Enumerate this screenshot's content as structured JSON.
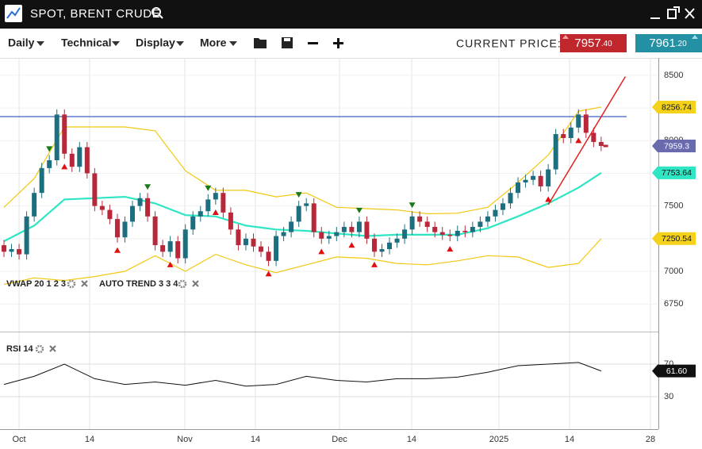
{
  "header": {
    "title": "SPOT, BRENT CRUDE"
  },
  "toolbar": {
    "menus": [
      "Daily",
      "Technical",
      "Display",
      "More"
    ],
    "current_price_label": "CURRENT PRICE:",
    "bid": {
      "main": "7957",
      "decimals": ".40"
    },
    "ask": {
      "main": "7961",
      "decimals": ".20"
    }
  },
  "chart_data": {
    "type": "candlestick",
    "xlim": [
      -0.525,
      86.57
    ],
    "xticks": [
      {
        "value": 2.0,
        "label": "Oct"
      },
      {
        "value": 11.33,
        "label": "14"
      },
      {
        "value": 23.92,
        "label": "Nov"
      },
      {
        "value": 33.26,
        "label": "14"
      },
      {
        "value": 44.39,
        "label": "Dec"
      },
      {
        "value": 53.93,
        "label": "14"
      },
      {
        "value": 65.48,
        "label": "2025"
      },
      {
        "value": 74.82,
        "label": "14"
      },
      {
        "value": 85.52,
        "label": "28"
      }
    ],
    "ylim": [
      6557,
      8621
    ],
    "yticks": [
      6750,
      7000,
      7250,
      7500,
      7750,
      8000,
      8250,
      8500
    ],
    "up_color": "#1d6f80",
    "down_color": "#b8283a",
    "open": [
      7200,
      7150,
      7170,
      7130,
      7420,
      7600,
      7790,
      7850,
      8200,
      7900,
      7800,
      7950,
      7750,
      7500,
      7470,
      7400,
      7260,
      7380,
      7500,
      7560,
      7420,
      7200,
      7150,
      7230,
      7100,
      7320,
      7420,
      7460,
      7550,
      7600,
      7450,
      7320,
      7200,
      7250,
      7190,
      7150,
      7080,
      7270,
      7300,
      7380,
      7500,
      7520,
      7300,
      7250,
      7270,
      7300,
      7340,
      7300,
      7380,
      7250,
      7150,
      7170,
      7220,
      7250,
      7320,
      7420,
      7380,
      7340,
      7300,
      7280,
      7270,
      7310,
      7300,
      7340,
      7380,
      7420,
      7470,
      7520,
      7600,
      7680,
      7700,
      7730,
      7650,
      7780,
      8050,
      8020,
      8100,
      8200,
      8060,
      7990
    ],
    "high": [
      7240,
      7210,
      7210,
      7460,
      7640,
      7830,
      7890,
      8240,
      8240,
      7940,
      7990,
      7990,
      7790,
      7540,
      7510,
      7440,
      7420,
      7540,
      7600,
      7600,
      7460,
      7240,
      7270,
      7270,
      7360,
      7460,
      7500,
      7590,
      7640,
      7640,
      7490,
      7360,
      7290,
      7290,
      7230,
      7190,
      7310,
      7340,
      7420,
      7540,
      7560,
      7560,
      7340,
      7310,
      7340,
      7380,
      7380,
      7420,
      7420,
      7290,
      7210,
      7260,
      7290,
      7360,
      7460,
      7460,
      7420,
      7380,
      7340,
      7320,
      7350,
      7350,
      7380,
      7420,
      7460,
      7510,
      7560,
      7640,
      7720,
      7740,
      7770,
      7770,
      7820,
      8090,
      8090,
      8140,
      8240,
      8240,
      8100,
      8030
    ],
    "low": [
      7110,
      7110,
      7090,
      7090,
      7380,
      7560,
      7750,
      7810,
      7860,
      7760,
      7760,
      7710,
      7460,
      7430,
      7360,
      7220,
      7220,
      7340,
      7460,
      7380,
      7160,
      7110,
      7110,
      7060,
      7060,
      7280,
      7380,
      7420,
      7510,
      7410,
      7280,
      7160,
      7160,
      7150,
      7110,
      7040,
      7040,
      7230,
      7260,
      7340,
      7460,
      7260,
      7210,
      7210,
      7230,
      7260,
      7260,
      7260,
      7210,
      7110,
      7110,
      7130,
      7180,
      7210,
      7280,
      7340,
      7300,
      7260,
      7240,
      7230,
      7230,
      7260,
      7260,
      7300,
      7340,
      7380,
      7430,
      7480,
      7560,
      7640,
      7660,
      7610,
      7610,
      7740,
      7980,
      7980,
      8060,
      8020,
      7950,
      7920
    ],
    "close": [
      7150,
      7170,
      7130,
      7420,
      7600,
      7790,
      7850,
      8200,
      7900,
      7800,
      7950,
      7750,
      7500,
      7470,
      7400,
      7260,
      7380,
      7500,
      7560,
      7420,
      7200,
      7150,
      7230,
      7100,
      7320,
      7420,
      7460,
      7550,
      7600,
      7450,
      7320,
      7200,
      7250,
      7190,
      7150,
      7080,
      7270,
      7300,
      7380,
      7500,
      7520,
      7300,
      7250,
      7270,
      7300,
      7340,
      7300,
      7380,
      7250,
      7150,
      7170,
      7220,
      7250,
      7320,
      7420,
      7380,
      7340,
      7300,
      7280,
      7270,
      7310,
      7300,
      7340,
      7380,
      7420,
      7470,
      7520,
      7600,
      7680,
      7700,
      7730,
      7650,
      7780,
      8050,
      8020,
      8100,
      8200,
      8060,
      7990,
      7959.3
    ],
    "close_tag_color": "#6a6aae",
    "overlays": [
      {
        "color": "#f2c811",
        "tag_color": "#f5d21a",
        "x": [
          0,
          4,
          8,
          12,
          16,
          20,
          24,
          28,
          32,
          36,
          40,
          44,
          48,
          52,
          56,
          60,
          64,
          68,
          72,
          76,
          79
        ],
        "values": [
          7490,
          7710,
          8105,
          8105,
          8105,
          8075,
          7770,
          7620,
          7620,
          7570,
          7600,
          7490,
          7480,
          7470,
          7440,
          7445,
          7490,
          7680,
          7890,
          8225,
          8256.74
        ]
      },
      {
        "color": "#2ee6c4",
        "tag_color": "#2ee6c4",
        "x": [
          0,
          4,
          8,
          12,
          16,
          20,
          24,
          28,
          32,
          36,
          40,
          44,
          48,
          52,
          56,
          60,
          64,
          68,
          72,
          76,
          79
        ],
        "values": [
          7230,
          7350,
          7550,
          7560,
          7570,
          7520,
          7430,
          7420,
          7350,
          7320,
          7310,
          7290,
          7270,
          7280,
          7280,
          7280,
          7330,
          7420,
          7520,
          7640,
          7753.64
        ]
      },
      {
        "color": "#f2c811",
        "tag_color": "#f5d21a",
        "x": [
          0,
          4,
          8,
          12,
          16,
          20,
          24,
          28,
          32,
          36,
          40,
          44,
          48,
          52,
          56,
          60,
          64,
          68,
          72,
          76,
          79
        ],
        "values": [
          6900,
          6950,
          6930,
          6960,
          7000,
          7120,
          7000,
          7130,
          7050,
          6990,
          7050,
          7110,
          7100,
          7060,
          7050,
          7080,
          7120,
          7110,
          7030,
          7060,
          7250.54
        ]
      }
    ],
    "hline": {
      "value": 8184,
      "color": "#4060c8"
    },
    "trend_line": {
      "x": [
        72,
        82.2
      ],
      "y": [
        7510,
        8490
      ],
      "color": "#e02020"
    },
    "signals": {
      "down": [
        6,
        19,
        27,
        39,
        47,
        54
      ],
      "down_color": "#1a7a1a",
      "up": [
        8,
        15,
        22,
        28,
        35,
        42,
        46,
        49,
        59,
        72,
        76
      ],
      "up_color": "#e01010"
    },
    "indicators": [
      "VWAP 20 1 2 3",
      "AUTO TREND 3 3 4"
    ],
    "rsi": {
      "label": "RSI 14",
      "ylim": [
        -9,
        108
      ],
      "yticks": [
        30,
        70
      ],
      "color": "#111111",
      "x": [
        0,
        4,
        8,
        12,
        16,
        20,
        24,
        28,
        32,
        36,
        40,
        44,
        48,
        52,
        56,
        60,
        64,
        68,
        72,
        76,
        79
      ],
      "values": [
        45,
        55,
        70,
        52,
        45,
        48,
        44,
        50,
        43,
        45,
        55,
        50,
        48,
        52,
        52,
        54,
        60,
        68,
        70,
        72,
        61.6
      ],
      "value_labels": [
        null,
        null,
        null,
        null,
        null,
        null,
        null,
        null,
        null,
        null,
        null,
        null,
        null,
        null,
        null,
        null,
        null,
        null,
        null,
        null,
        "61.60"
      ]
    }
  }
}
